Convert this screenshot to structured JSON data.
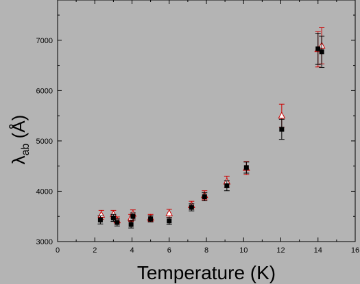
{
  "chart_data": {
    "type": "scatter",
    "xlabel": "Temperature (K)",
    "ylabel": {
      "main": "λ",
      "sub": "ab",
      "unit": " (Å)"
    },
    "xlim": [
      0,
      16
    ],
    "ylim": [
      3000,
      7800
    ],
    "x_ticks": [
      0,
      2,
      4,
      6,
      8,
      10,
      12,
      14,
      16
    ],
    "y_ticks": [
      3000,
      4000,
      5000,
      6000,
      7000
    ],
    "grid": false,
    "legend": "none",
    "series": [
      {
        "marker": "filled-square",
        "color": "#000000",
        "points": [
          {
            "x": 2.3,
            "y": 3430,
            "err": 80
          },
          {
            "x": 3.0,
            "y": 3470,
            "err": 70
          },
          {
            "x": 3.2,
            "y": 3380,
            "err": 70
          },
          {
            "x": 3.95,
            "y": 3340,
            "err": 70
          },
          {
            "x": 4.05,
            "y": 3500,
            "err": 70
          },
          {
            "x": 5.0,
            "y": 3450,
            "err": 60
          },
          {
            "x": 6.0,
            "y": 3410,
            "err": 70
          },
          {
            "x": 7.2,
            "y": 3680,
            "err": 70
          },
          {
            "x": 7.9,
            "y": 3890,
            "err": 80
          },
          {
            "x": 9.1,
            "y": 4110,
            "err": 100
          },
          {
            "x": 10.15,
            "y": 4470,
            "err": 110
          },
          {
            "x": 12.05,
            "y": 5230,
            "err": 200
          },
          {
            "x": 14.0,
            "y": 6830,
            "err": 310
          },
          {
            "x": 14.2,
            "y": 6770,
            "err": 310
          }
        ]
      },
      {
        "marker": "open-triangle",
        "color": "#cc0000",
        "points": [
          {
            "x": 2.35,
            "y": 3530,
            "err": 90
          },
          {
            "x": 3.0,
            "y": 3540,
            "err": 80
          },
          {
            "x": 3.2,
            "y": 3420,
            "err": 70
          },
          {
            "x": 3.95,
            "y": 3470,
            "err": 70
          },
          {
            "x": 4.05,
            "y": 3550,
            "err": 80
          },
          {
            "x": 5.0,
            "y": 3470,
            "err": 70
          },
          {
            "x": 6.0,
            "y": 3560,
            "err": 80
          },
          {
            "x": 7.2,
            "y": 3720,
            "err": 80
          },
          {
            "x": 7.9,
            "y": 3920,
            "err": 90
          },
          {
            "x": 9.1,
            "y": 4190,
            "err": 110
          },
          {
            "x": 10.15,
            "y": 4460,
            "err": 130
          },
          {
            "x": 12.05,
            "y": 5500,
            "err": 230
          },
          {
            "x": 14.0,
            "y": 6820,
            "err": 350
          },
          {
            "x": 14.2,
            "y": 6890,
            "err": 360
          }
        ]
      }
    ]
  }
}
